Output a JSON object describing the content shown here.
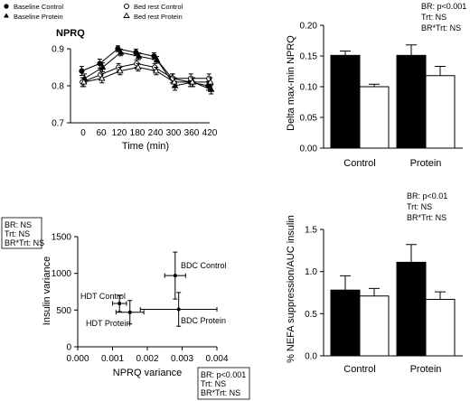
{
  "chart_data": [
    {
      "type": "line",
      "title": "NPRQ",
      "xlabel": "Time (min)",
      "ylabel": "",
      "x": [
        0,
        60,
        120,
        180,
        240,
        300,
        360,
        420
      ],
      "xticks": [
        "0",
        "60",
        "120",
        "180",
        "240",
        "300",
        "360",
        "420"
      ],
      "ylim": [
        0.7,
        0.9
      ],
      "yticks": [
        "0.7",
        "0.8",
        "0.9"
      ],
      "legend_position": "top",
      "series": [
        {
          "name": "Baseline Control",
          "marker": "filled-circle",
          "values": [
            0.84,
            0.86,
            0.9,
            0.89,
            0.88,
            0.82,
            0.81,
            0.8
          ],
          "errors": [
            0.012,
            0.012,
            0.008,
            0.009,
            0.009,
            0.012,
            0.012,
            0.012
          ]
        },
        {
          "name": "Baseline Protein",
          "marker": "filled-triangle",
          "values": [
            0.82,
            0.85,
            0.89,
            0.88,
            0.87,
            0.8,
            0.81,
            0.79
          ],
          "errors": [
            0.012,
            0.012,
            0.009,
            0.009,
            0.009,
            0.012,
            0.012,
            0.012
          ]
        },
        {
          "name": "Bed rest Control",
          "marker": "open-circle",
          "values": [
            0.81,
            0.83,
            0.85,
            0.86,
            0.85,
            0.82,
            0.82,
            0.82
          ],
          "errors": [
            0.012,
            0.012,
            0.01,
            0.01,
            0.01,
            0.012,
            0.012,
            0.012
          ]
        },
        {
          "name": "Bed rest Protein",
          "marker": "open-triangle",
          "values": [
            0.81,
            0.82,
            0.84,
            0.85,
            0.84,
            0.81,
            0.81,
            0.81
          ],
          "errors": [
            0.012,
            0.012,
            0.01,
            0.01,
            0.01,
            0.012,
            0.012,
            0.012
          ]
        }
      ]
    },
    {
      "type": "bar",
      "title": "",
      "xlabel": "",
      "ylabel": "Delta max-min NPRQ",
      "categories": [
        "Control",
        "Protein"
      ],
      "ylim": [
        0,
        0.2
      ],
      "yticks": [
        "0.00",
        "0.05",
        "0.10",
        "0.15",
        "0.20"
      ],
      "bar_colors": [
        "#000000",
        "#ffffff"
      ],
      "series": [
        {
          "values": [
            0.151,
            0.151
          ],
          "errors": [
            0.007,
            0.017
          ]
        },
        {
          "values": [
            0.1,
            0.118
          ],
          "errors": [
            0.004,
            0.015
          ]
        }
      ],
      "stats": [
        "BR: p<0.001",
        "Trt: NS",
        "BR*Trt: NS"
      ]
    },
    {
      "type": "scatter",
      "title": "",
      "xlabel": "NPRQ variance",
      "ylabel": "Insulin variance",
      "xlim": [
        0,
        0.004
      ],
      "ylim": [
        0,
        1500
      ],
      "xticks": [
        "0.000",
        "0.001",
        "0.002",
        "0.003",
        "0.004"
      ],
      "yticks": [
        "0",
        "500",
        "1000",
        "1500"
      ],
      "points": [
        {
          "label": "BDC Control",
          "x": 0.0028,
          "y": 970,
          "xerr": 0.0003,
          "yerr": 320
        },
        {
          "label": "BDC Protein",
          "x": 0.0029,
          "y": 510,
          "xerr": 0.0011,
          "yerr": 230
        },
        {
          "label": "HDT Control",
          "x": 0.0012,
          "y": 590,
          "xerr": 0.0002,
          "yerr": 110
        },
        {
          "label": "HDT Protein",
          "x": 0.0015,
          "y": 470,
          "xerr": 0.0004,
          "yerr": 160
        }
      ],
      "stats_x": [
        "BR: p<0.001",
        "Trt: NS",
        "BR*Trt: NS"
      ],
      "stats_y": [
        "BR: NS",
        "Trt: NS",
        "BR*Trt: NS"
      ]
    },
    {
      "type": "bar",
      "title": "",
      "xlabel": "",
      "ylabel": "% NEFA suppression/AUC insulin",
      "categories": [
        "Control",
        "Protein"
      ],
      "ylim": [
        0,
        1.5
      ],
      "yticks": [
        "0.0",
        "0.5",
        "1.0",
        "1.5"
      ],
      "bar_colors": [
        "#000000",
        "#ffffff"
      ],
      "series": [
        {
          "values": [
            0.78,
            1.11
          ],
          "errors": [
            0.17,
            0.21
          ]
        },
        {
          "values": [
            0.71,
            0.67
          ],
          "errors": [
            0.09,
            0.09
          ]
        }
      ],
      "stats": [
        "BR: p<0.01",
        "Trt: NS",
        "BR*Trt: NS"
      ]
    }
  ]
}
